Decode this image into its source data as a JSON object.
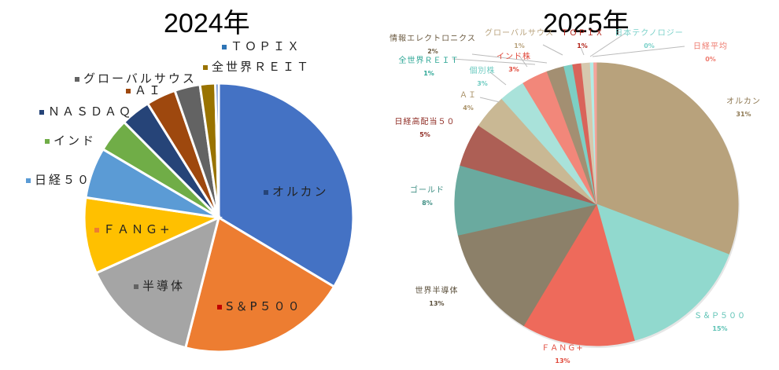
{
  "chart_data": [
    {
      "type": "pie",
      "title": "2024年",
      "legend_position": "labels on slices",
      "categories": [
        "オルカン",
        "S&P500",
        "半導体",
        "FANG+",
        "日経50",
        "インド",
        "NASDAQ",
        "AI",
        "グローバルサウス",
        "全世界REIT",
        "TOPIX"
      ],
      "labels_display": [
        "オルカン",
        "S＆P５００",
        "半導体",
        "ＦＡＮＧ+",
        "日経５０",
        "インド",
        "ＮＡＳＤＡＱ",
        "ＡＩ",
        "グローバルサウス",
        "全世界ＲＥＩＴ",
        "ＴＯＰＩＸ"
      ],
      "values": [
        33,
        20,
        14,
        9,
        6,
        4,
        3.5,
        3.5,
        3,
        1.8,
        0.4
      ],
      "colors": [
        "#4472C4",
        "#ED7D31",
        "#A5A5A5",
        "#FFC000",
        "#5B9BD5",
        "#70AD47",
        "#264478",
        "#9E480E",
        "#636363",
        "#997300",
        "#4472C4"
      ],
      "marker_colors": [
        "#264478",
        "#C00000",
        "#636363",
        "#ED7D31",
        "#5B9BD5",
        "#70AD47",
        "#264478",
        "#9E480E",
        "#636363",
        "#997300",
        "#2E75B6"
      ]
    },
    {
      "type": "pie",
      "title": "2025年",
      "categories": [
        "オルカン",
        "S&P500",
        "FANG+",
        "世界半導体",
        "ゴールド",
        "日経高配当50",
        "AI",
        "個別株",
        "インド株",
        "情報エレクトロニクス",
        "全世界REIT",
        "TOPIX",
        "グローバルサウス",
        "日本テクノロジー",
        "日経平均"
      ],
      "labels_display": [
        "オルカン",
        "Ｓ＆Ｐ５００",
        "ＦＡＮＧ+",
        "世界半導体",
        "ゴールド",
        "日経高配当５０",
        "ＡＩ",
        "個別株",
        "インド株",
        "情報エレクトロニクス",
        "全世界ＲＥＩＴ",
        "ＴＯＰＩＸ",
        "グローバルサウス",
        "日本テクノロジー",
        "日経平均"
      ],
      "values": [
        31,
        15,
        13,
        13,
        8,
        5,
        4,
        3,
        3,
        2,
        1,
        1,
        1,
        0.4,
        0.3
      ],
      "percent_labels": [
        "31%",
        "15%",
        "13%",
        "13%",
        "8%",
        "5%",
        "4%",
        "3%",
        "3%",
        "2%",
        "1%",
        "1%",
        "1%",
        "0%",
        "0%"
      ],
      "colors": [
        "#B8A27C",
        "#91D9CE",
        "#EE6A5B",
        "#8C8069",
        "#6AAA9F",
        "#AD5F55",
        "#C9B894",
        "#A9E2DA",
        "#F2877A",
        "#A38F72",
        "#7DCFC4",
        "#D9645A",
        "#D6C8AE",
        "#B2ECE6",
        "#F4A49B"
      ],
      "label_colors": [
        "#8C7650",
        "#5CC2B4",
        "#E0483A",
        "#5A4E3A",
        "#3F8F84",
        "#8E2A22",
        "#A89066",
        "#6CCAC0",
        "#E0483A",
        "#6B5A40",
        "#2EA796",
        "#B22218",
        "#B8A27C",
        "#7AD1C9",
        "#EE7A6E"
      ]
    }
  ]
}
